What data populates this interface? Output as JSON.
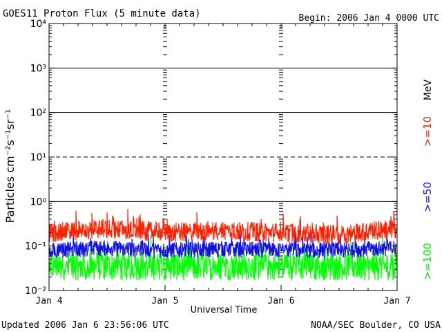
{
  "header": {
    "title": "GOES11 Proton Flux (5 minute data)",
    "begin": "Begin: 2006 Jan 4 0000 UTC"
  },
  "footer": {
    "updated": "Updated 2006 Jan  6 23:56:06 UTC",
    "credit": "NOAA/SEC Boulder, CO USA"
  },
  "legend": {
    "unit": "MeV",
    "labels": [
      ">=10",
      ">=50",
      ">=100"
    ]
  },
  "chart_data": {
    "type": "line",
    "title": "GOES11 Proton Flux (5 minute data)",
    "xlabel": "Universal Time",
    "ylabel": "Particles cm⁻²s⁻¹sr⁻¹",
    "yscale": "log",
    "ylim": [
      0.01,
      10000
    ],
    "xlim": [
      "2006-01-04 00:00",
      "2006-01-07 00:00"
    ],
    "x_ticks": [
      "Jan 4",
      "Jan 5",
      "Jan 6",
      "Jan 7"
    ],
    "y_ticks": [
      "10⁻²",
      "10⁻¹",
      "10⁰",
      "10¹",
      "10²",
      "10³",
      "10⁴"
    ],
    "y_tick_values": [
      0.01,
      0.1,
      1,
      10,
      100,
      1000,
      10000
    ],
    "threshold_lines": [
      {
        "value": 1,
        "style": "solid"
      },
      {
        "value": 10,
        "style": "dashed"
      },
      {
        "value": 100,
        "style": "solid"
      },
      {
        "value": 1000,
        "style": "solid"
      }
    ],
    "series": [
      {
        "name": ">=10",
        "color": "#ff2000",
        "x": [
          "2006-01-04 00:00",
          "2006-01-04 12:00",
          "2006-01-05 00:00",
          "2006-01-05 12:00",
          "2006-01-06 00:00",
          "2006-01-06 12:00",
          "2006-01-07 00:00"
        ],
        "values": [
          0.2,
          0.25,
          0.2,
          0.22,
          0.2,
          0.18,
          0.25
        ]
      },
      {
        "name": ">=50",
        "color": "#1010e0",
        "x": [
          "2006-01-04 00:00",
          "2006-01-04 12:00",
          "2006-01-05 00:00",
          "2006-01-05 12:00",
          "2006-01-06 00:00",
          "2006-01-06 12:00",
          "2006-01-07 00:00"
        ],
        "values": [
          0.08,
          0.09,
          0.08,
          0.085,
          0.08,
          0.08,
          0.09
        ]
      },
      {
        "name": ">=100",
        "color": "#00ff00",
        "x": [
          "2006-01-04 00:00",
          "2006-01-04 12:00",
          "2006-01-05 00:00",
          "2006-01-05 12:00",
          "2006-01-06 00:00",
          "2006-01-06 12:00",
          "2006-01-07 00:00"
        ],
        "values": [
          0.035,
          0.035,
          0.035,
          0.035,
          0.035,
          0.035,
          0.035
        ]
      }
    ]
  }
}
